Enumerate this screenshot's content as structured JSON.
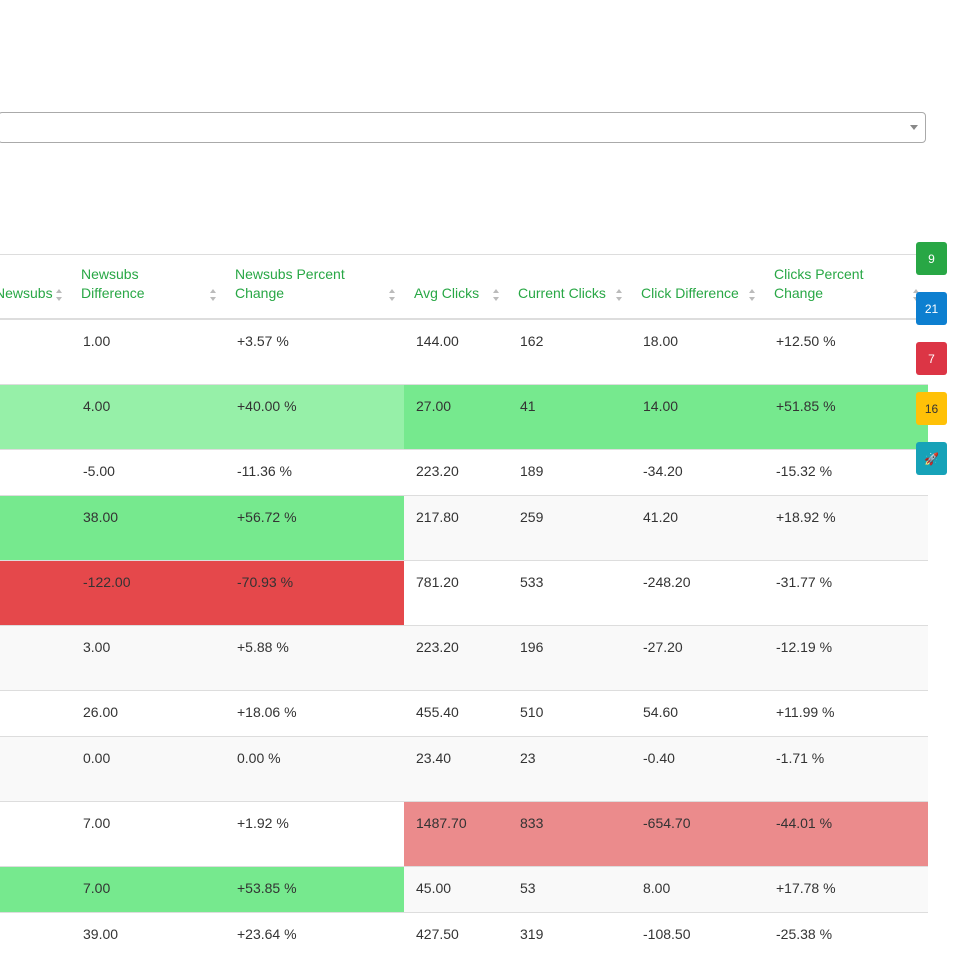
{
  "table": {
    "headers": [
      {
        "label": "Newsubs"
      },
      {
        "label": "Newsubs Difference"
      },
      {
        "label": "Newsubs Percent Change"
      },
      {
        "label": "Avg Clicks"
      },
      {
        "label": "Current Clicks"
      },
      {
        "label": "Click Difference"
      },
      {
        "label": "Clicks Percent Change"
      }
    ],
    "rows": [
      {
        "cells": [
          "",
          "1.00",
          "+3.57 %",
          "144.00",
          "162",
          "18.00",
          "+12.50 %"
        ]
      },
      {
        "cells": [
          "",
          "4.00",
          "+40.00 %",
          "27.00",
          "41",
          "14.00",
          "+51.85 %"
        ]
      },
      {
        "cells": [
          "",
          "-5.00",
          "-11.36 %",
          "223.20",
          "189",
          "-34.20",
          "-15.32 %"
        ]
      },
      {
        "cells": [
          "",
          "38.00",
          "+56.72 %",
          "217.80",
          "259",
          "41.20",
          "+18.92 %"
        ]
      },
      {
        "cells": [
          "",
          "-122.00",
          "-70.93 %",
          "781.20",
          "533",
          "-248.20",
          "-31.77 %"
        ]
      },
      {
        "cells": [
          "",
          "3.00",
          "+5.88 %",
          "223.20",
          "196",
          "-27.20",
          "-12.19 %"
        ]
      },
      {
        "cells": [
          "",
          "26.00",
          "+18.06 %",
          "455.40",
          "510",
          "54.60",
          "+11.99 %"
        ]
      },
      {
        "cells": [
          "",
          "0.00",
          "0.00 %",
          "23.40",
          "23",
          "-0.40",
          "-1.71 %"
        ]
      },
      {
        "cells": [
          "",
          "7.00",
          "+1.92 %",
          "1487.70",
          "833",
          "-654.70",
          "-44.01 %"
        ]
      },
      {
        "cells": [
          "",
          "7.00",
          "+53.85 %",
          "45.00",
          "53",
          "8.00",
          "+17.78 %"
        ]
      },
      {
        "cells": [
          "",
          "39.00",
          "+23.64 %",
          "427.50",
          "319",
          "-108.50",
          "-25.38 %"
        ]
      }
    ]
  },
  "side_badges": [
    {
      "label": "9",
      "color": "#28a745"
    },
    {
      "label": "21",
      "color": "#0d7fd0"
    },
    {
      "label": "7",
      "color": "#dc3545"
    },
    {
      "label": "16",
      "color": "#ffc107"
    },
    {
      "label": "🚀",
      "icon": "rocket-icon",
      "color": "#17a2b8"
    }
  ],
  "colors": {
    "header_text": "#28a745",
    "highlight_light_green": "#96f0a8",
    "highlight_green": "#76e98e",
    "highlight_red": "#e5484b",
    "highlight_light_red": "#eb8b8c"
  }
}
